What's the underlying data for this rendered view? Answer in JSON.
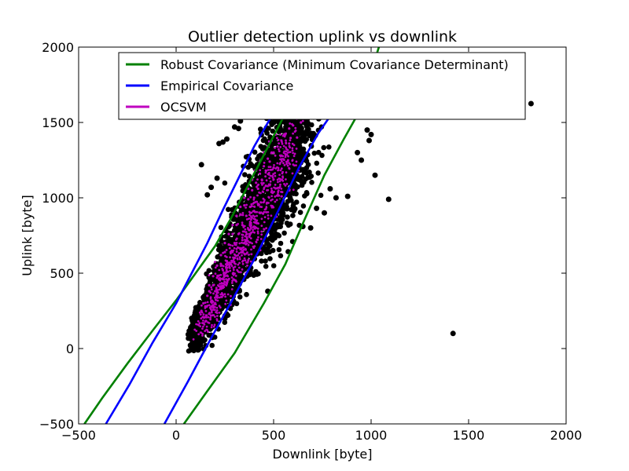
{
  "chart_data": {
    "type": "scatter",
    "title": "Outlier detection uplink vs downlink",
    "xlabel": "Downlink [byte]",
    "ylabel": "Uplink [byte]",
    "xlim": [
      -500,
      2000
    ],
    "ylim": [
      -500,
      2000
    ],
    "xticks": [
      -500,
      0,
      500,
      1000,
      1500,
      2000
    ],
    "yticks": [
      -500,
      0,
      500,
      1000,
      1500,
      2000
    ],
    "x_tick_labels": [
      "−500",
      "0",
      "500",
      "1000",
      "1500",
      "2000"
    ],
    "y_tick_labels": [
      "−500",
      "0",
      "500",
      "1000",
      "1500",
      "2000"
    ],
    "grid": false,
    "legend_position": "top-center",
    "legend": [
      {
        "label": "Robust Covariance (Minimum Covariance Determinant)",
        "color": "#008000"
      },
      {
        "label": "Empirical Covariance",
        "color": "#0000ff"
      },
      {
        "label": "OCSVM",
        "color": "#bf00bf"
      }
    ],
    "colors": {
      "points": "#000000",
      "inliers": "#bf00bf",
      "robust": "#008000",
      "empirical": "#0000ff"
    },
    "series": [
      {
        "name": "Robust Covariance (Minimum Covariance Determinant)",
        "kind": "contour",
        "color": "#008000",
        "paths": [
          [
            [
              -470,
              -500
            ],
            [
              -380,
              -330
            ],
            [
              -250,
              -100
            ],
            [
              -120,
              120
            ],
            [
              0,
              320
            ],
            [
              100,
              500
            ],
            [
              200,
              680
            ],
            [
              280,
              860
            ],
            [
              360,
              1060
            ],
            [
              440,
              1260
            ],
            [
              520,
              1460
            ],
            [
              560,
              1560
            ]
          ],
          [
            [
              40,
              -500
            ],
            [
              150,
              -300
            ],
            [
              300,
              -30
            ],
            [
              450,
              300
            ],
            [
              560,
              560
            ],
            [
              660,
              860
            ],
            [
              760,
              1150
            ],
            [
              860,
              1390
            ],
            [
              930,
              1550
            ],
            [
              980,
              1750
            ],
            [
              1040,
              2000
            ]
          ]
        ]
      },
      {
        "name": "Empirical Covariance",
        "kind": "contour",
        "color": "#0000ff",
        "paths": [
          [
            [
              -360,
              -500
            ],
            [
              -240,
              -240
            ],
            [
              -120,
              40
            ],
            [
              0,
              300
            ],
            [
              80,
              500
            ],
            [
              160,
              700
            ],
            [
              240,
              920
            ],
            [
              320,
              1130
            ],
            [
              400,
              1340
            ],
            [
              480,
              1520
            ],
            [
              500,
              1560
            ]
          ],
          [
            [
              -60,
              -500
            ],
            [
              60,
              -220
            ],
            [
              180,
              70
            ],
            [
              300,
              350
            ],
            [
              420,
              640
            ],
            [
              530,
              930
            ],
            [
              630,
              1200
            ],
            [
              730,
              1430
            ],
            [
              800,
              1560
            ]
          ]
        ]
      }
    ],
    "points_outliers": [
      [
        1820,
        1625
      ],
      [
        1420,
        100
      ],
      [
        1090,
        990
      ],
      [
        1020,
        1150
      ],
      [
        990,
        1380
      ],
      [
        1000,
        1420
      ],
      [
        980,
        1450
      ],
      [
        930,
        1300
      ],
      [
        950,
        1250
      ],
      [
        880,
        1010
      ],
      [
        820,
        1000
      ],
      [
        790,
        1060
      ],
      [
        760,
        900
      ],
      [
        720,
        930
      ],
      [
        690,
        800
      ],
      [
        650,
        810
      ],
      [
        470,
        380
      ],
      [
        130,
        1220
      ],
      [
        100,
        100
      ],
      [
        100,
        160
      ],
      [
        100,
        250
      ],
      [
        120,
        170
      ],
      [
        130,
        130
      ],
      [
        140,
        340
      ],
      [
        160,
        1020
      ],
      [
        180,
        1070
      ],
      [
        210,
        1130
      ],
      [
        220,
        1360
      ],
      [
        240,
        1370
      ],
      [
        260,
        1390
      ],
      [
        250,
        200
      ],
      [
        300,
        1470
      ],
      [
        330,
        1510
      ],
      [
        320,
        1460
      ],
      [
        760,
        1600
      ]
    ],
    "inlier_points": [
      [
        130,
        250
      ],
      [
        140,
        300
      ],
      [
        150,
        280
      ],
      [
        160,
        350
      ],
      [
        170,
        420
      ],
      [
        180,
        310
      ],
      [
        190,
        480
      ],
      [
        200,
        380
      ],
      [
        210,
        550
      ],
      [
        220,
        460
      ],
      [
        230,
        620
      ],
      [
        240,
        520
      ],
      [
        250,
        700
      ],
      [
        260,
        580
      ],
      [
        270,
        760
      ],
      [
        280,
        640
      ],
      [
        290,
        820
      ],
      [
        300,
        700
      ],
      [
        310,
        880
      ],
      [
        320,
        760
      ],
      [
        330,
        940
      ],
      [
        340,
        820
      ],
      [
        350,
        1000
      ],
      [
        360,
        880
      ],
      [
        370,
        1060
      ],
      [
        380,
        940
      ],
      [
        390,
        1120
      ],
      [
        400,
        1000
      ],
      [
        410,
        1180
      ],
      [
        420,
        1060
      ],
      [
        430,
        1240
      ],
      [
        440,
        1120
      ],
      [
        450,
        1300
      ],
      [
        460,
        1180
      ],
      [
        470,
        1340
      ],
      [
        480,
        1240
      ],
      [
        490,
        1380
      ],
      [
        500,
        1300
      ],
      [
        510,
        1420
      ],
      [
        520,
        1340
      ],
      [
        540,
        1380
      ],
      [
        560,
        1420
      ],
      [
        580,
        1460
      ],
      [
        600,
        1480
      ],
      [
        620,
        1400
      ],
      [
        640,
        1500
      ],
      [
        230,
        560
      ],
      [
        250,
        640
      ],
      [
        270,
        690
      ],
      [
        290,
        760
      ],
      [
        310,
        820
      ],
      [
        330,
        890
      ],
      [
        350,
        950
      ],
      [
        370,
        990
      ],
      [
        390,
        1050
      ],
      [
        410,
        1100
      ],
      [
        430,
        1160
      ],
      [
        450,
        1210
      ],
      [
        470,
        1260
      ],
      [
        490,
        1300
      ],
      [
        210,
        470
      ],
      [
        190,
        420
      ],
      [
        170,
        380
      ],
      [
        260,
        430
      ],
      [
        300,
        600
      ],
      [
        340,
        720
      ],
      [
        380,
        840
      ],
      [
        420,
        960
      ],
      [
        460,
        1080
      ],
      [
        500,
        1200
      ],
      [
        540,
        1280
      ],
      [
        580,
        1360
      ]
    ],
    "cloud_seed": 7
  }
}
